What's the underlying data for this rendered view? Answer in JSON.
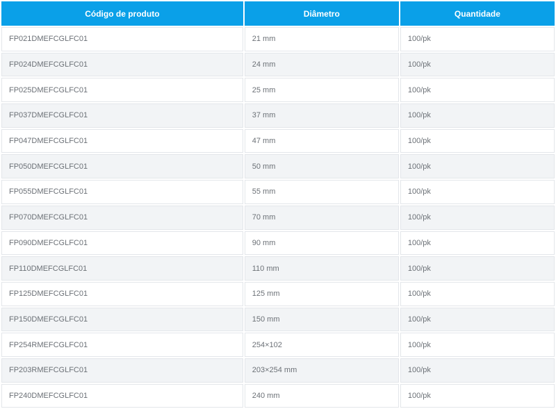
{
  "table": {
    "headers": [
      "Código de produto",
      "Diâmetro",
      "Quantidade"
    ],
    "rows": [
      [
        "FP021DMEFCGLFC01",
        "21 mm",
        "100/pk"
      ],
      [
        "FP024DMEFCGLFC01",
        "24 mm",
        "100/pk"
      ],
      [
        "FP025DMEFCGLFC01",
        "25 mm",
        "100/pk"
      ],
      [
        "FP037DMEFCGLFC01",
        "37 mm",
        "100/pk"
      ],
      [
        "FP047DMEFCGLFC01",
        "47 mm",
        "100/pk"
      ],
      [
        "FP050DMEFCGLFC01",
        "50 mm",
        "100/pk"
      ],
      [
        "FP055DMEFCGLFC01",
        "55 mm",
        "100/pk"
      ],
      [
        "FP070DMEFCGLFC01",
        "70 mm",
        "100/pk"
      ],
      [
        "FP090DMEFCGLFC01",
        "90 mm",
        "100/pk"
      ],
      [
        "FP110DMEFCGLFC01",
        "110 mm",
        "100/pk"
      ],
      [
        "FP125DMEFCGLFC01",
        "125 mm",
        "100/pk"
      ],
      [
        "FP150DMEFCGLFC01",
        "150 mm",
        "100/pk"
      ],
      [
        "FP254RMEFCGLFC01",
        "254×102",
        "100/pk"
      ],
      [
        "FP203RMEFCGLFC01",
        "203×254 mm",
        "100/pk"
      ],
      [
        "FP240DMEFCGLFC01",
        "240 mm",
        "100/pk"
      ]
    ]
  },
  "colors": {
    "header_bg": "#0aa0e8",
    "header_text": "#ffffff",
    "row_alt_bg": "#f2f4f6",
    "cell_text": "#6b7076"
  }
}
